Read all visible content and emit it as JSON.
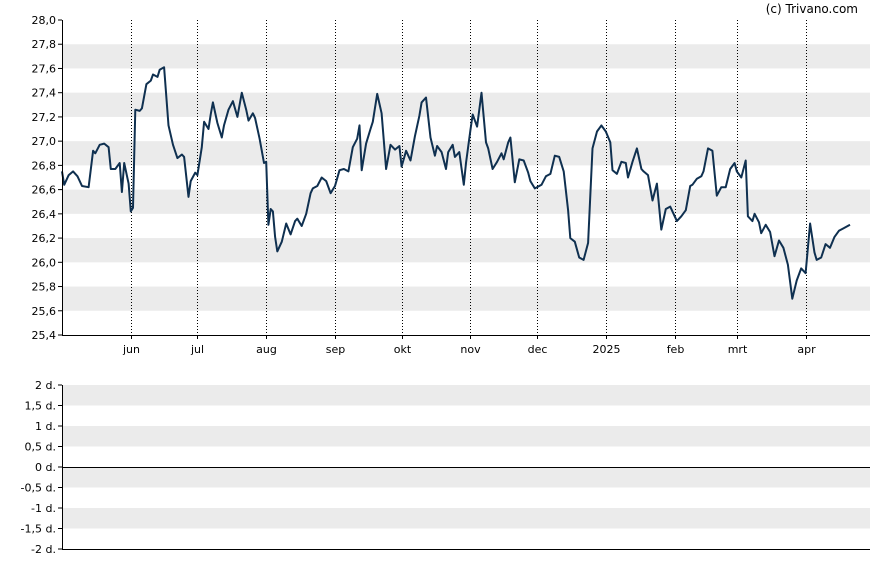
{
  "credit": "(c) Trivano.com",
  "colors": {
    "line": "#0f3050",
    "band": "#ebebeb",
    "axis": "#000000",
    "vgrid": "#000000"
  },
  "chart_data": [
    {
      "type": "line",
      "title": "",
      "xlabel": "",
      "ylabel": "",
      "ylim": [
        25.4,
        28.0
      ],
      "y_ticks": [
        "28,0",
        "27,8",
        "27,6",
        "27,4",
        "27,2",
        "27,0",
        "26,8",
        "26,6",
        "26,4",
        "26,2",
        "26,0",
        "25,8",
        "25,6",
        "25,4"
      ],
      "y_tick_values": [
        28.0,
        27.8,
        27.6,
        27.4,
        27.2,
        27.0,
        26.8,
        26.6,
        26.4,
        26.2,
        26.0,
        25.8,
        25.6,
        25.4
      ],
      "x_tick_labels": [
        "jun",
        "jul",
        "aug",
        "sep",
        "okt",
        "nov",
        "dec",
        "2025",
        "feb",
        "mrt",
        "apr"
      ],
      "x_tick_dates": [
        "2024-06-01",
        "2024-07-01",
        "2024-08-01",
        "2024-09-01",
        "2024-10-01",
        "2024-11-01",
        "2024-12-01",
        "2025-01-01",
        "2025-02-01",
        "2025-03-01",
        "2025-04-01"
      ],
      "xlim": [
        "2024-05-01",
        "2025-04-30"
      ],
      "grid": "horizontal alternating bands, dotted vertical lines at month ticks",
      "series": [
        {
          "points": [
            [
              "2024-05-01",
              26.75
            ],
            [
              "2024-05-02",
              26.64
            ],
            [
              "2024-05-04",
              26.72
            ],
            [
              "2024-05-06",
              26.75
            ],
            [
              "2024-05-08",
              26.71
            ],
            [
              "2024-05-10",
              26.63
            ],
            [
              "2024-05-13",
              26.62
            ],
            [
              "2024-05-15",
              26.92
            ],
            [
              "2024-05-16",
              26.9
            ],
            [
              "2024-05-18",
              26.97
            ],
            [
              "2024-05-20",
              26.98
            ],
            [
              "2024-05-22",
              26.95
            ],
            [
              "2024-05-23",
              26.77
            ],
            [
              "2024-05-25",
              26.77
            ],
            [
              "2024-05-27",
              26.82
            ],
            [
              "2024-05-28",
              26.58
            ],
            [
              "2024-05-29",
              26.82
            ],
            [
              "2024-05-31",
              26.65
            ],
            [
              "2024-06-01",
              26.42
            ],
            [
              "2024-06-02",
              26.45
            ],
            [
              "2024-06-03",
              27.26
            ],
            [
              "2024-06-05",
              27.25
            ],
            [
              "2024-06-06",
              27.27
            ],
            [
              "2024-06-08",
              27.47
            ],
            [
              "2024-06-10",
              27.5
            ],
            [
              "2024-06-11",
              27.55
            ],
            [
              "2024-06-13",
              27.53
            ],
            [
              "2024-06-14",
              27.59
            ],
            [
              "2024-06-16",
              27.61
            ],
            [
              "2024-06-18",
              27.13
            ],
            [
              "2024-06-20",
              26.97
            ],
            [
              "2024-06-22",
              26.86
            ],
            [
              "2024-06-24",
              26.89
            ],
            [
              "2024-06-25",
              26.87
            ],
            [
              "2024-06-27",
              26.54
            ],
            [
              "2024-06-28",
              26.67
            ],
            [
              "2024-06-30",
              26.74
            ],
            [
              "2024-07-01",
              26.72
            ],
            [
              "2024-07-03",
              26.95
            ],
            [
              "2024-07-04",
              27.16
            ],
            [
              "2024-07-06",
              27.1
            ],
            [
              "2024-07-07",
              27.22
            ],
            [
              "2024-07-08",
              27.32
            ],
            [
              "2024-07-10",
              27.15
            ],
            [
              "2024-07-12",
              27.03
            ],
            [
              "2024-07-13",
              27.13
            ],
            [
              "2024-07-15",
              27.26
            ],
            [
              "2024-07-17",
              27.33
            ],
            [
              "2024-07-19",
              27.2
            ],
            [
              "2024-07-21",
              27.4
            ],
            [
              "2024-07-23",
              27.26
            ],
            [
              "2024-07-24",
              27.17
            ],
            [
              "2024-07-26",
              27.23
            ],
            [
              "2024-07-27",
              27.19
            ],
            [
              "2024-07-29",
              27.02
            ],
            [
              "2024-07-31",
              26.82
            ],
            [
              "2024-08-01",
              26.83
            ],
            [
              "2024-08-02",
              26.31
            ],
            [
              "2024-08-03",
              26.44
            ],
            [
              "2024-08-04",
              26.42
            ],
            [
              "2024-08-05",
              26.21
            ],
            [
              "2024-08-06",
              26.09
            ],
            [
              "2024-08-08",
              26.17
            ],
            [
              "2024-08-10",
              26.32
            ],
            [
              "2024-08-12",
              26.23
            ],
            [
              "2024-08-14",
              26.34
            ],
            [
              "2024-08-15",
              26.36
            ],
            [
              "2024-08-17",
              26.3
            ],
            [
              "2024-08-19",
              26.4
            ],
            [
              "2024-08-21",
              26.57
            ],
            [
              "2024-08-22",
              26.61
            ],
            [
              "2024-08-24",
              26.63
            ],
            [
              "2024-08-26",
              26.7
            ],
            [
              "2024-08-28",
              26.67
            ],
            [
              "2024-08-30",
              26.57
            ],
            [
              "2024-09-01",
              26.63
            ],
            [
              "2024-09-03",
              26.76
            ],
            [
              "2024-09-05",
              26.77
            ],
            [
              "2024-09-07",
              26.75
            ],
            [
              "2024-09-09",
              26.95
            ],
            [
              "2024-09-11",
              27.02
            ],
            [
              "2024-09-12",
              27.13
            ],
            [
              "2024-09-13",
              26.76
            ],
            [
              "2024-09-15",
              26.98
            ],
            [
              "2024-09-17",
              27.1
            ],
            [
              "2024-09-18",
              27.16
            ],
            [
              "2024-09-20",
              27.39
            ],
            [
              "2024-09-22",
              27.23
            ],
            [
              "2024-09-24",
              26.77
            ],
            [
              "2024-09-26",
              26.97
            ],
            [
              "2024-09-28",
              26.93
            ],
            [
              "2024-09-30",
              26.96
            ],
            [
              "2024-10-01",
              26.79
            ],
            [
              "2024-10-03",
              26.92
            ],
            [
              "2024-10-05",
              26.84
            ],
            [
              "2024-10-07",
              27.04
            ],
            [
              "2024-10-09",
              27.21
            ],
            [
              "2024-10-10",
              27.32
            ],
            [
              "2024-10-12",
              27.36
            ],
            [
              "2024-10-14",
              27.03
            ],
            [
              "2024-10-16",
              26.88
            ],
            [
              "2024-10-17",
              26.96
            ],
            [
              "2024-10-19",
              26.91
            ],
            [
              "2024-10-21",
              26.77
            ],
            [
              "2024-10-22",
              26.91
            ],
            [
              "2024-10-24",
              26.97
            ],
            [
              "2024-10-25",
              26.87
            ],
            [
              "2024-10-27",
              26.91
            ],
            [
              "2024-10-29",
              26.64
            ],
            [
              "2024-10-30",
              26.82
            ],
            [
              "2024-11-01",
              27.09
            ],
            [
              "2024-11-02",
              27.22
            ],
            [
              "2024-11-04",
              27.12
            ],
            [
              "2024-11-06",
              27.4
            ],
            [
              "2024-11-08",
              26.99
            ],
            [
              "2024-11-09",
              26.94
            ],
            [
              "2024-11-11",
              26.77
            ],
            [
              "2024-11-13",
              26.83
            ],
            [
              "2024-11-15",
              26.9
            ],
            [
              "2024-11-16",
              26.85
            ],
            [
              "2024-11-18",
              26.99
            ],
            [
              "2024-11-19",
              27.03
            ],
            [
              "2024-11-21",
              26.66
            ],
            [
              "2024-11-23",
              26.85
            ],
            [
              "2024-11-25",
              26.84
            ],
            [
              "2024-11-27",
              26.74
            ],
            [
              "2024-11-28",
              26.67
            ],
            [
              "2024-11-30",
              26.61
            ],
            [
              "2024-12-01",
              26.62
            ],
            [
              "2024-12-03",
              26.64
            ],
            [
              "2024-12-05",
              26.71
            ],
            [
              "2024-12-07",
              26.73
            ],
            [
              "2024-12-09",
              26.88
            ],
            [
              "2024-12-11",
              26.87
            ],
            [
              "2024-12-13",
              26.75
            ],
            [
              "2024-12-15",
              26.43
            ],
            [
              "2024-12-16",
              26.2
            ],
            [
              "2024-12-18",
              26.17
            ],
            [
              "2024-12-20",
              26.04
            ],
            [
              "2024-12-22",
              26.02
            ],
            [
              "2024-12-24",
              26.16
            ],
            [
              "2024-12-26",
              26.94
            ],
            [
              "2024-12-28",
              27.08
            ],
            [
              "2024-12-30",
              27.13
            ],
            [
              "2025-01-01",
              27.08
            ],
            [
              "2025-01-03",
              26.99
            ],
            [
              "2025-01-04",
              26.76
            ],
            [
              "2025-01-06",
              26.73
            ],
            [
              "2025-01-08",
              26.83
            ],
            [
              "2025-01-10",
              26.82
            ],
            [
              "2025-01-11",
              26.7
            ],
            [
              "2025-01-13",
              26.83
            ],
            [
              "2025-01-15",
              26.94
            ],
            [
              "2025-01-17",
              26.77
            ],
            [
              "2025-01-18",
              26.75
            ],
            [
              "2025-01-20",
              26.72
            ],
            [
              "2025-01-22",
              26.51
            ],
            [
              "2025-01-24",
              26.65
            ],
            [
              "2025-01-26",
              26.27
            ],
            [
              "2025-01-28",
              26.44
            ],
            [
              "2025-01-30",
              26.46
            ],
            [
              "2025-02-01",
              26.38
            ],
            [
              "2025-02-02",
              26.34
            ],
            [
              "2025-02-04",
              26.38
            ],
            [
              "2025-02-06",
              26.43
            ],
            [
              "2025-02-08",
              26.63
            ],
            [
              "2025-02-09",
              26.64
            ],
            [
              "2025-02-11",
              26.69
            ],
            [
              "2025-02-13",
              26.71
            ],
            [
              "2025-02-14",
              26.75
            ],
            [
              "2025-02-16",
              26.94
            ],
            [
              "2025-02-18",
              26.92
            ],
            [
              "2025-02-20",
              26.55
            ],
            [
              "2025-02-22",
              26.62
            ],
            [
              "2025-02-24",
              26.62
            ],
            [
              "2025-02-26",
              26.77
            ],
            [
              "2025-02-28",
              26.82
            ],
            [
              "2025-03-01",
              26.75
            ],
            [
              "2025-03-03",
              26.7
            ],
            [
              "2025-03-05",
              26.84
            ],
            [
              "2025-03-06",
              26.38
            ],
            [
              "2025-03-08",
              26.34
            ],
            [
              "2025-03-09",
              26.4
            ],
            [
              "2025-03-11",
              26.33
            ],
            [
              "2025-03-12",
              26.24
            ],
            [
              "2025-03-14",
              26.31
            ],
            [
              "2025-03-16",
              26.25
            ],
            [
              "2025-03-18",
              26.05
            ],
            [
              "2025-03-20",
              26.18
            ],
            [
              "2025-03-22",
              26.12
            ],
            [
              "2025-03-24",
              25.98
            ],
            [
              "2025-03-26",
              25.7
            ],
            [
              "2025-03-28",
              25.85
            ],
            [
              "2025-03-30",
              25.95
            ],
            [
              "2025-04-01",
              25.91
            ],
            [
              "2025-04-03",
              26.32
            ],
            [
              "2025-04-05",
              26.08
            ],
            [
              "2025-04-06",
              26.02
            ],
            [
              "2025-04-08",
              26.04
            ],
            [
              "2025-04-10",
              26.15
            ],
            [
              "2025-04-12",
              26.12
            ],
            [
              "2025-04-14",
              26.21
            ],
            [
              "2025-04-16",
              26.26
            ],
            [
              "2025-04-18",
              26.28
            ],
            [
              "2025-04-21",
              26.31
            ]
          ]
        }
      ]
    },
    {
      "type": "line",
      "title": "",
      "xlabel": "",
      "ylabel": "",
      "ylim": [
        -2,
        2
      ],
      "y_ticks": [
        "2 d.",
        "1,5 d.",
        "1 d.",
        "0,5 d.",
        "0 d.",
        "-0,5 d.",
        "-1 d.",
        "-1,5 d.",
        "-2 d."
      ],
      "y_tick_values": [
        2,
        1.5,
        1,
        0.5,
        0,
        -0.5,
        -1,
        -1.5,
        -2
      ],
      "grid": "horizontal alternating bands, solid zero line",
      "series": []
    }
  ]
}
